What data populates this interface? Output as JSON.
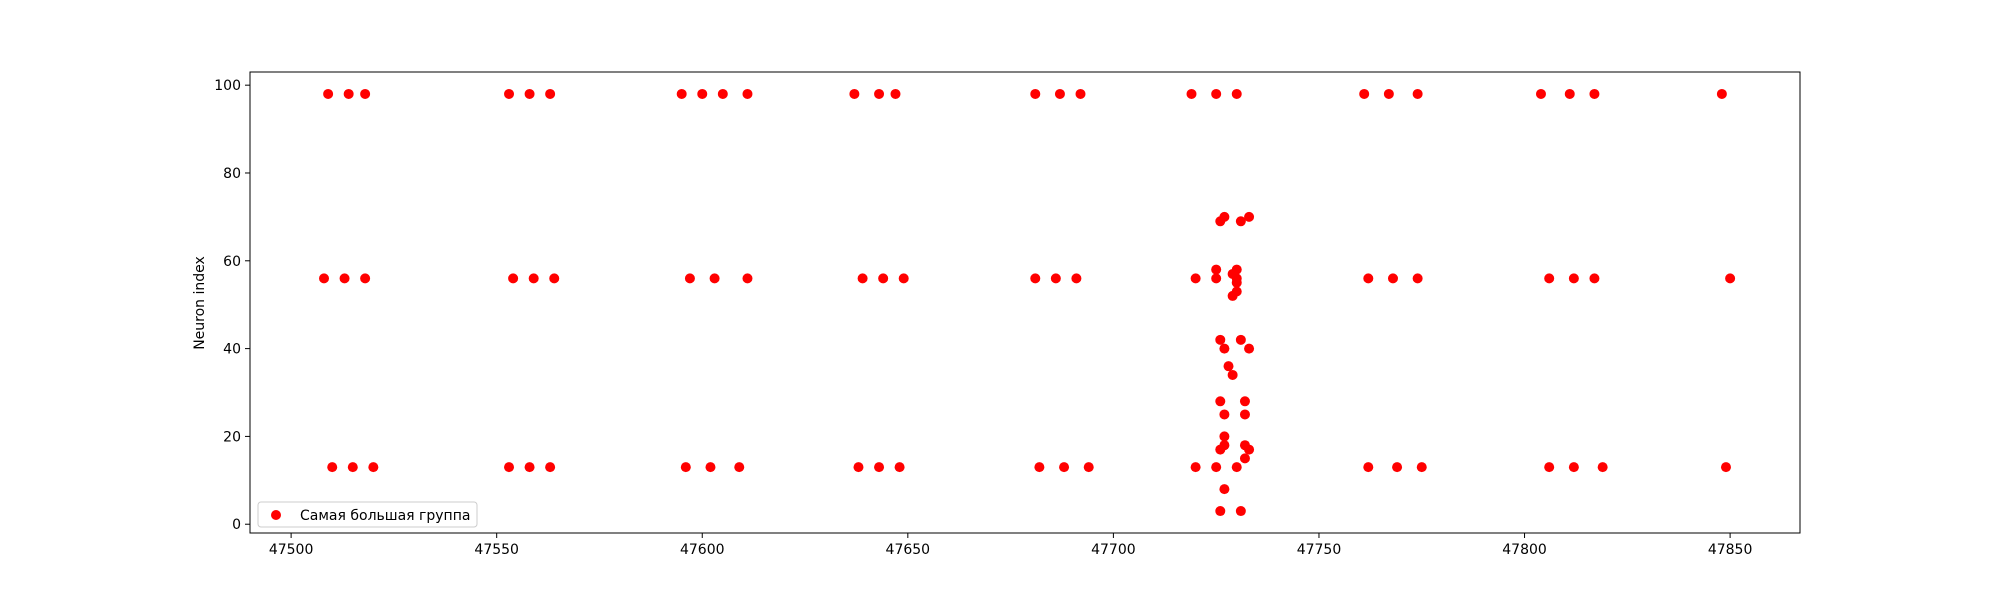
{
  "chart_data": {
    "type": "scatter",
    "title": "",
    "xlabel": "",
    "ylabel": "Neuron index",
    "xlim": [
      47490,
      47867
    ],
    "ylim": [
      -2,
      103
    ],
    "xticks": [
      47500,
      47550,
      47600,
      47650,
      47700,
      47750,
      47800,
      47850
    ],
    "yticks": [
      0,
      20,
      40,
      60,
      80,
      100
    ],
    "grid": false,
    "legend_position": "lower-left",
    "series": [
      {
        "name": "Самая большая группа",
        "color": "#ff0000",
        "marker": "circle",
        "points": [
          [
            47509,
            98
          ],
          [
            47514,
            98
          ],
          [
            47518,
            98
          ],
          [
            47553,
            98
          ],
          [
            47558,
            98
          ],
          [
            47563,
            98
          ],
          [
            47595,
            98
          ],
          [
            47600,
            98
          ],
          [
            47605,
            98
          ],
          [
            47611,
            98
          ],
          [
            47637,
            98
          ],
          [
            47643,
            98
          ],
          [
            47647,
            98
          ],
          [
            47681,
            98
          ],
          [
            47687,
            98
          ],
          [
            47692,
            98
          ],
          [
            47719,
            98
          ],
          [
            47725,
            98
          ],
          [
            47730,
            98
          ],
          [
            47761,
            98
          ],
          [
            47767,
            98
          ],
          [
            47774,
            98
          ],
          [
            47804,
            98
          ],
          [
            47811,
            98
          ],
          [
            47817,
            98
          ],
          [
            47848,
            98
          ],
          [
            47508,
            56
          ],
          [
            47513,
            56
          ],
          [
            47518,
            56
          ],
          [
            47554,
            56
          ],
          [
            47559,
            56
          ],
          [
            47564,
            56
          ],
          [
            47597,
            56
          ],
          [
            47603,
            56
          ],
          [
            47611,
            56
          ],
          [
            47639,
            56
          ],
          [
            47644,
            56
          ],
          [
            47649,
            56
          ],
          [
            47681,
            56
          ],
          [
            47686,
            56
          ],
          [
            47691,
            56
          ],
          [
            47720,
            56
          ],
          [
            47725,
            56
          ],
          [
            47730,
            56
          ],
          [
            47762,
            56
          ],
          [
            47768,
            56
          ],
          [
            47774,
            56
          ],
          [
            47806,
            56
          ],
          [
            47812,
            56
          ],
          [
            47817,
            56
          ],
          [
            47850,
            56
          ],
          [
            47510,
            13
          ],
          [
            47515,
            13
          ],
          [
            47520,
            13
          ],
          [
            47553,
            13
          ],
          [
            47558,
            13
          ],
          [
            47563,
            13
          ],
          [
            47596,
            13
          ],
          [
            47602,
            13
          ],
          [
            47609,
            13
          ],
          [
            47638,
            13
          ],
          [
            47643,
            13
          ],
          [
            47648,
            13
          ],
          [
            47682,
            13
          ],
          [
            47688,
            13
          ],
          [
            47694,
            13
          ],
          [
            47720,
            13
          ],
          [
            47725,
            13
          ],
          [
            47730,
            13
          ],
          [
            47762,
            13
          ],
          [
            47769,
            13
          ],
          [
            47775,
            13
          ],
          [
            47806,
            13
          ],
          [
            47812,
            13
          ],
          [
            47819,
            13
          ],
          [
            47849,
            13
          ],
          [
            47726,
            69
          ],
          [
            47727,
            70
          ],
          [
            47731,
            69
          ],
          [
            47733,
            70
          ],
          [
            47725,
            58
          ],
          [
            47730,
            58
          ],
          [
            47729,
            57
          ],
          [
            47730,
            55
          ],
          [
            47730,
            53
          ],
          [
            47729,
            52
          ],
          [
            47726,
            42
          ],
          [
            47727,
            40
          ],
          [
            47731,
            42
          ],
          [
            47733,
            40
          ],
          [
            47728,
            36
          ],
          [
            47729,
            34
          ],
          [
            47726,
            28
          ],
          [
            47732,
            28
          ],
          [
            47727,
            25
          ],
          [
            47732,
            25
          ],
          [
            47727,
            20
          ],
          [
            47726,
            17
          ],
          [
            47727,
            18
          ],
          [
            47732,
            18
          ],
          [
            47733,
            17
          ],
          [
            47732,
            15
          ],
          [
            47727,
            8
          ],
          [
            47726,
            3
          ],
          [
            47731,
            3
          ]
        ]
      }
    ]
  }
}
